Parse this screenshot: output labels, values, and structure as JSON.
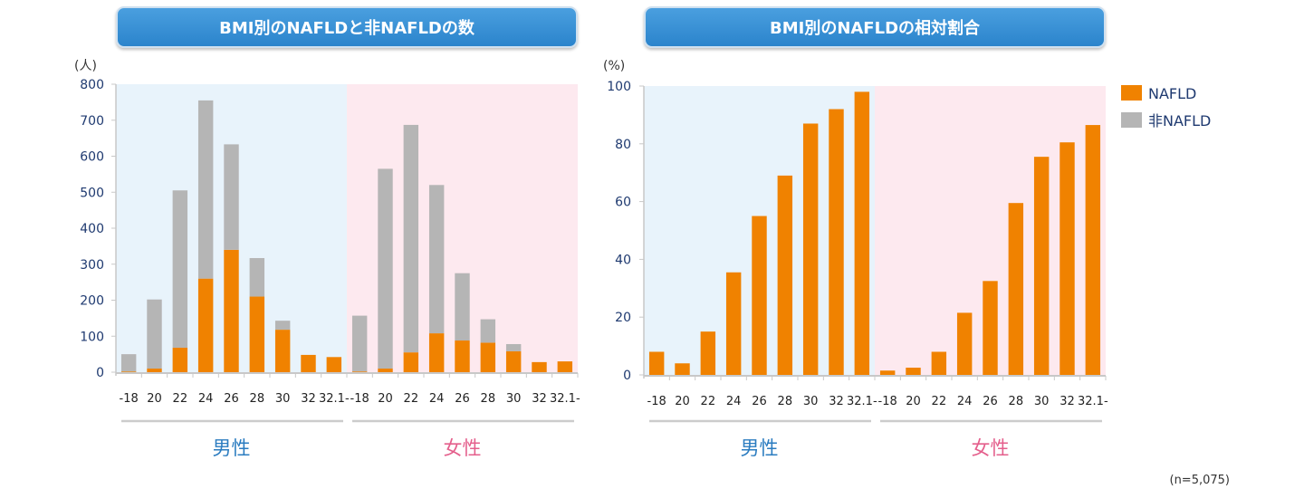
{
  "titles": {
    "left": "BMI別のNAFLDと非NAFLDの数",
    "right": "BMI別のNAFLDの相対割合"
  },
  "legend": [
    {
      "label": "NAFLD",
      "color": "#f08200"
    },
    {
      "label": "非NAFLD",
      "color": "#b5b5b5"
    }
  ],
  "colors": {
    "nafld": "#f08200",
    "non_nafld": "#b5b5b5",
    "male_bg": "#e8f3fb",
    "female_bg": "#fde9ef",
    "male_text": "#2b7cc0",
    "female_text": "#e45f8c"
  },
  "note": "(n=5,075)",
  "chart_data": [
    {
      "type": "bar",
      "stacked": true,
      "title": "BMI別のNAFLDと非NAFLDの数",
      "unit": "(人)",
      "ylim": [
        0,
        800
      ],
      "yticks": [
        0,
        100,
        200,
        300,
        400,
        500,
        600,
        700,
        800
      ],
      "categories": [
        "-18",
        "20",
        "22",
        "24",
        "26",
        "28",
        "30",
        "32",
        "32.1-"
      ],
      "groups": [
        {
          "name": "男性",
          "series": [
            {
              "name": "NAFLD",
              "values": [
                2,
                10,
                68,
                260,
                340,
                210,
                118,
                48,
                42
              ]
            },
            {
              "name": "非NAFLD",
              "values": [
                48,
                192,
                437,
                495,
                293,
                107,
                25,
                0,
                0
              ]
            }
          ]
        },
        {
          "name": "女性",
          "series": [
            {
              "name": "NAFLD",
              "values": [
                2,
                10,
                55,
                108,
                88,
                82,
                58,
                28,
                30
              ]
            },
            {
              "name": "非NAFLD",
              "values": [
                155,
                555,
                632,
                412,
                187,
                65,
                20,
                0,
                0
              ]
            }
          ]
        }
      ]
    },
    {
      "type": "bar",
      "title": "BMI別のNAFLDの相対割合",
      "unit": "(%)",
      "ylim": [
        0,
        100
      ],
      "yticks": [
        0,
        20,
        40,
        60,
        80,
        100
      ],
      "categories": [
        "-18",
        "20",
        "22",
        "24",
        "26",
        "28",
        "30",
        "32",
        "32.1-"
      ],
      "groups": [
        {
          "name": "男性",
          "series": [
            {
              "name": "NAFLD",
              "values": [
                8,
                4,
                15,
                35.5,
                55,
                69,
                87,
                92,
                98
              ]
            }
          ]
        },
        {
          "name": "女性",
          "series": [
            {
              "name": "NAFLD",
              "values": [
                1.5,
                2.5,
                8,
                21.5,
                32.5,
                59.5,
                75.5,
                80.5,
                86.5
              ]
            }
          ]
        }
      ]
    }
  ]
}
